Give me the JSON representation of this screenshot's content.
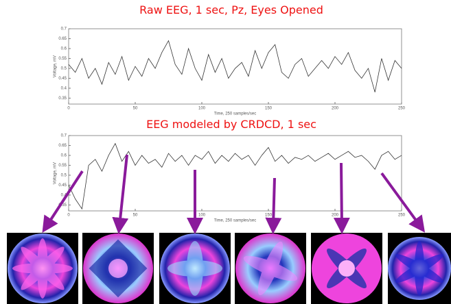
{
  "chart_data": [
    {
      "type": "line",
      "title": "Raw EEG, 1 sec, Pz, Eyes Opened",
      "xlabel": "Time, 250 samples/sec",
      "ylabel": "Voltage, mV",
      "xlim": [
        0,
        250
      ],
      "xticks": [
        0,
        50,
        100,
        150,
        200,
        250
      ],
      "ylim": [
        0.32,
        0.7
      ],
      "yticks": [
        0.35,
        0.4,
        0.45,
        0.5,
        0.55,
        0.6,
        0.65,
        0.7
      ],
      "x": [
        0,
        5,
        10,
        15,
        20,
        25,
        30,
        35,
        40,
        45,
        50,
        55,
        60,
        65,
        70,
        75,
        80,
        85,
        90,
        95,
        100,
        105,
        110,
        115,
        120,
        125,
        130,
        135,
        140,
        145,
        150,
        155,
        160,
        165,
        170,
        175,
        180,
        185,
        190,
        195,
        200,
        205,
        210,
        215,
        220,
        225,
        230,
        235,
        240,
        245,
        250
      ],
      "series": [
        {
          "color": "#333333",
          "values": [
            0.52,
            0.48,
            0.55,
            0.45,
            0.5,
            0.42,
            0.53,
            0.47,
            0.56,
            0.44,
            0.51,
            0.46,
            0.55,
            0.5,
            0.58,
            0.64,
            0.52,
            0.47,
            0.6,
            0.5,
            0.44,
            0.57,
            0.48,
            0.55,
            0.45,
            0.5,
            0.53,
            0.46,
            0.59,
            0.5,
            0.58,
            0.62,
            0.48,
            0.45,
            0.52,
            0.55,
            0.46,
            0.5,
            0.54,
            0.5,
            0.56,
            0.52,
            0.58,
            0.49,
            0.45,
            0.5,
            0.38,
            0.55,
            0.44,
            0.54,
            0.5
          ]
        }
      ]
    },
    {
      "type": "line",
      "title": "EEG modeled by CRDCD, 1 sec",
      "xlabel": "Time, 250 samples/sec",
      "ylabel": "Voltage, mV",
      "xlim": [
        0,
        250
      ],
      "xticks": [
        0,
        50,
        100,
        150,
        200,
        250
      ],
      "ylim": [
        0.32,
        0.7
      ],
      "yticks": [
        0.35,
        0.4,
        0.45,
        0.5,
        0.55,
        0.6,
        0.65,
        0.7
      ],
      "x": [
        0,
        5,
        10,
        15,
        20,
        25,
        30,
        35,
        40,
        45,
        50,
        55,
        60,
        65,
        70,
        75,
        80,
        85,
        90,
        95,
        100,
        105,
        110,
        115,
        120,
        125,
        130,
        135,
        140,
        145,
        150,
        155,
        160,
        165,
        170,
        175,
        180,
        185,
        190,
        195,
        200,
        205,
        210,
        215,
        220,
        225,
        230,
        235,
        240,
        245,
        250
      ],
      "series": [
        {
          "color": "#333333",
          "values": [
            0.45,
            0.38,
            0.33,
            0.55,
            0.58,
            0.52,
            0.6,
            0.66,
            0.57,
            0.62,
            0.55,
            0.6,
            0.56,
            0.58,
            0.54,
            0.61,
            0.57,
            0.6,
            0.55,
            0.6,
            0.58,
            0.62,
            0.56,
            0.6,
            0.57,
            0.61,
            0.58,
            0.6,
            0.55,
            0.6,
            0.64,
            0.57,
            0.6,
            0.56,
            0.59,
            0.58,
            0.6,
            0.57,
            0.59,
            0.61,
            0.58,
            0.6,
            0.62,
            0.59,
            0.6,
            0.57,
            0.53,
            0.6,
            0.62,
            0.58,
            0.6
          ]
        }
      ]
    }
  ]
}
